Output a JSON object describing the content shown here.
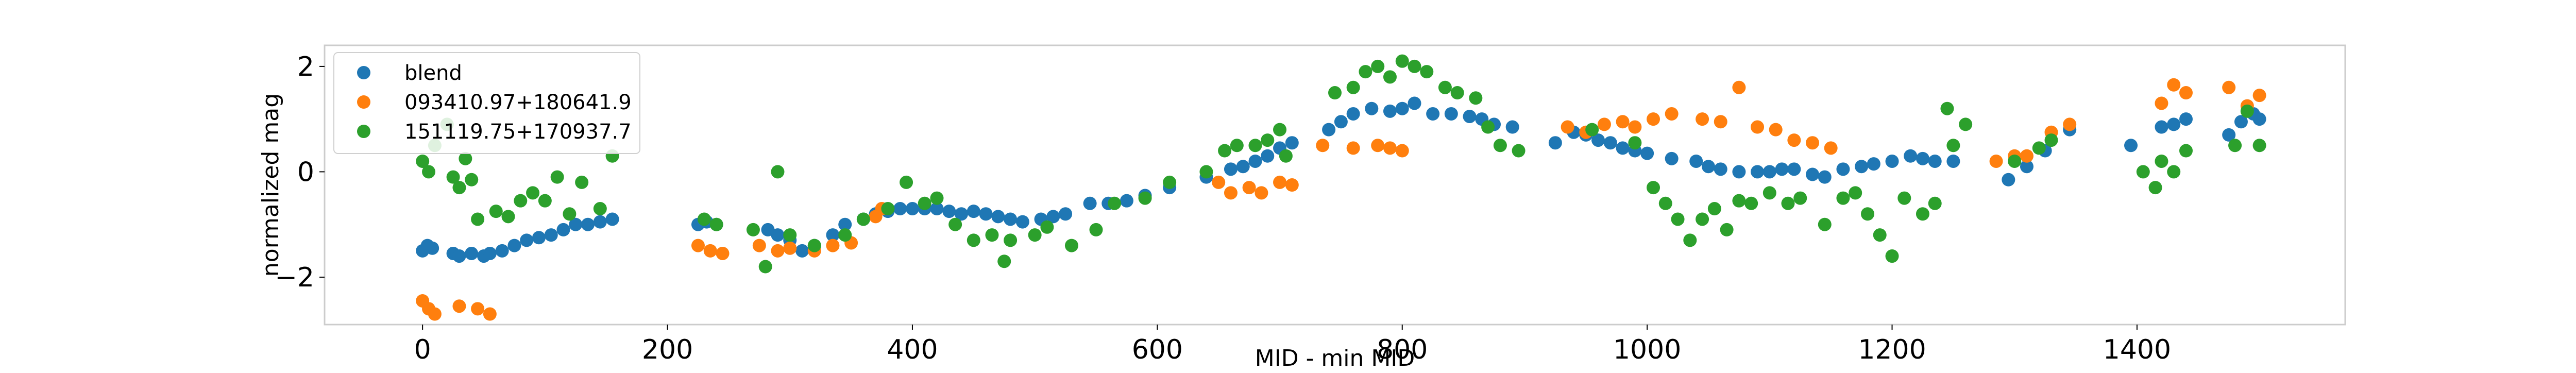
{
  "chart_data": {
    "type": "scatter",
    "xlabel": "MID - min MID",
    "ylabel": "normalized mag",
    "xlim": [
      -80,
      1570
    ],
    "ylim": [
      -2.9,
      2.4
    ],
    "xticks": [
      0,
      200,
      400,
      600,
      800,
      1000,
      1200,
      1400
    ],
    "yticks": [
      -2,
      0,
      2
    ],
    "grid": false,
    "legend_position": "top-left",
    "series": [
      {
        "name": "blend",
        "color": "#1f77b4",
        "points": [
          [
            0,
            -1.5
          ],
          [
            4,
            -1.4
          ],
          [
            8,
            -1.45
          ],
          [
            25,
            -1.55
          ],
          [
            30,
            -1.6
          ],
          [
            40,
            -1.55
          ],
          [
            50,
            -1.6
          ],
          [
            55,
            -1.55
          ],
          [
            65,
            -1.5
          ],
          [
            75,
            -1.4
          ],
          [
            85,
            -1.3
          ],
          [
            95,
            -1.25
          ],
          [
            105,
            -1.2
          ],
          [
            115,
            -1.1
          ],
          [
            125,
            -1.0
          ],
          [
            135,
            -1.0
          ],
          [
            145,
            -0.95
          ],
          [
            155,
            -0.9
          ],
          [
            225,
            -1.0
          ],
          [
            232,
            -0.95
          ],
          [
            240,
            -1.0
          ],
          [
            282,
            -1.1
          ],
          [
            290,
            -1.2
          ],
          [
            300,
            -1.3
          ],
          [
            310,
            -1.5
          ],
          [
            320,
            -1.4
          ],
          [
            335,
            -1.2
          ],
          [
            345,
            -1.0
          ],
          [
            360,
            -0.9
          ],
          [
            370,
            -0.8
          ],
          [
            380,
            -0.75
          ],
          [
            390,
            -0.7
          ],
          [
            400,
            -0.7
          ],
          [
            410,
            -0.7
          ],
          [
            420,
            -0.7
          ],
          [
            430,
            -0.75
          ],
          [
            440,
            -0.8
          ],
          [
            450,
            -0.75
          ],
          [
            460,
            -0.8
          ],
          [
            470,
            -0.85
          ],
          [
            480,
            -0.9
          ],
          [
            490,
            -0.95
          ],
          [
            505,
            -0.9
          ],
          [
            515,
            -0.85
          ],
          [
            525,
            -0.8
          ],
          [
            545,
            -0.6
          ],
          [
            560,
            -0.6
          ],
          [
            575,
            -0.55
          ],
          [
            590,
            -0.45
          ],
          [
            610,
            -0.3
          ],
          [
            640,
            -0.1
          ],
          [
            660,
            0.05
          ],
          [
            670,
            0.1
          ],
          [
            680,
            0.2
          ],
          [
            690,
            0.3
          ],
          [
            700,
            0.45
          ],
          [
            710,
            0.55
          ],
          [
            740,
            0.8
          ],
          [
            750,
            0.95
          ],
          [
            760,
            1.1
          ],
          [
            775,
            1.2
          ],
          [
            790,
            1.15
          ],
          [
            800,
            1.2
          ],
          [
            810,
            1.3
          ],
          [
            825,
            1.1
          ],
          [
            840,
            1.1
          ],
          [
            855,
            1.05
          ],
          [
            865,
            1.0
          ],
          [
            875,
            0.9
          ],
          [
            890,
            0.85
          ],
          [
            925,
            0.55
          ],
          [
            940,
            0.75
          ],
          [
            950,
            0.7
          ],
          [
            960,
            0.6
          ],
          [
            970,
            0.55
          ],
          [
            980,
            0.45
          ],
          [
            990,
            0.4
          ],
          [
            1000,
            0.35
          ],
          [
            1020,
            0.25
          ],
          [
            1040,
            0.2
          ],
          [
            1050,
            0.1
          ],
          [
            1060,
            0.05
          ],
          [
            1075,
            0.0
          ],
          [
            1090,
            0.0
          ],
          [
            1100,
            0.0
          ],
          [
            1110,
            0.05
          ],
          [
            1120,
            0.05
          ],
          [
            1135,
            -0.05
          ],
          [
            1145,
            -0.1
          ],
          [
            1160,
            0.05
          ],
          [
            1175,
            0.1
          ],
          [
            1185,
            0.15
          ],
          [
            1200,
            0.2
          ],
          [
            1215,
            0.3
          ],
          [
            1225,
            0.25
          ],
          [
            1235,
            0.2
          ],
          [
            1250,
            0.2
          ],
          [
            1295,
            -0.15
          ],
          [
            1310,
            0.1
          ],
          [
            1325,
            0.4
          ],
          [
            1345,
            0.8
          ],
          [
            1395,
            0.5
          ],
          [
            1420,
            0.85
          ],
          [
            1430,
            0.9
          ],
          [
            1440,
            1.0
          ],
          [
            1475,
            0.7
          ],
          [
            1485,
            0.95
          ],
          [
            1495,
            1.1
          ],
          [
            1500,
            1.0
          ]
        ]
      },
      {
        "name": "093410.97+180641.9",
        "color": "#ff7f0e",
        "points": [
          [
            0,
            -2.45
          ],
          [
            5,
            -2.6
          ],
          [
            10,
            -2.7
          ],
          [
            30,
            -2.55
          ],
          [
            45,
            -2.6
          ],
          [
            55,
            -2.7
          ],
          [
            225,
            -1.4
          ],
          [
            235,
            -1.5
          ],
          [
            245,
            -1.55
          ],
          [
            275,
            -1.4
          ],
          [
            290,
            -1.5
          ],
          [
            300,
            -1.45
          ],
          [
            320,
            -1.5
          ],
          [
            335,
            -1.4
          ],
          [
            350,
            -1.35
          ],
          [
            370,
            -0.85
          ],
          [
            375,
            -0.7
          ],
          [
            650,
            -0.2
          ],
          [
            660,
            -0.4
          ],
          [
            675,
            -0.3
          ],
          [
            685,
            -0.4
          ],
          [
            700,
            -0.2
          ],
          [
            710,
            -0.25
          ],
          [
            735,
            0.5
          ],
          [
            760,
            0.45
          ],
          [
            780,
            0.5
          ],
          [
            790,
            0.45
          ],
          [
            800,
            0.4
          ],
          [
            935,
            0.85
          ],
          [
            950,
            0.75
          ],
          [
            965,
            0.9
          ],
          [
            980,
            0.95
          ],
          [
            990,
            0.85
          ],
          [
            1005,
            1.0
          ],
          [
            1020,
            1.1
          ],
          [
            1045,
            1.0
          ],
          [
            1060,
            0.95
          ],
          [
            1075,
            1.6
          ],
          [
            1090,
            0.85
          ],
          [
            1105,
            0.8
          ],
          [
            1120,
            0.6
          ],
          [
            1135,
            0.55
          ],
          [
            1150,
            0.45
          ],
          [
            1285,
            0.2
          ],
          [
            1300,
            0.3
          ],
          [
            1310,
            0.3
          ],
          [
            1330,
            0.75
          ],
          [
            1345,
            0.9
          ],
          [
            1420,
            1.3
          ],
          [
            1430,
            1.65
          ],
          [
            1440,
            1.5
          ],
          [
            1475,
            1.6
          ],
          [
            1490,
            1.25
          ],
          [
            1500,
            1.45
          ]
        ]
      },
      {
        "name": "151119.75+170937.7",
        "color": "#2ca02c",
        "points": [
          [
            0,
            0.2
          ],
          [
            5,
            0.0
          ],
          [
            10,
            0.5
          ],
          [
            20,
            0.9
          ],
          [
            25,
            -0.1
          ],
          [
            30,
            -0.3
          ],
          [
            35,
            0.25
          ],
          [
            40,
            -0.15
          ],
          [
            45,
            -0.9
          ],
          [
            60,
            -0.75
          ],
          [
            70,
            -0.85
          ],
          [
            80,
            -0.55
          ],
          [
            90,
            -0.4
          ],
          [
            100,
            -0.55
          ],
          [
            110,
            -0.1
          ],
          [
            120,
            -0.8
          ],
          [
            130,
            -0.2
          ],
          [
            145,
            -0.7
          ],
          [
            155,
            0.3
          ],
          [
            230,
            -0.9
          ],
          [
            240,
            -1.0
          ],
          [
            270,
            -1.1
          ],
          [
            280,
            -1.8
          ],
          [
            290,
            0.0
          ],
          [
            300,
            -1.2
          ],
          [
            320,
            -1.4
          ],
          [
            345,
            -1.2
          ],
          [
            360,
            -0.9
          ],
          [
            380,
            -0.7
          ],
          [
            395,
            -0.2
          ],
          [
            410,
            -0.6
          ],
          [
            420,
            -0.5
          ],
          [
            435,
            -1.0
          ],
          [
            450,
            -1.3
          ],
          [
            465,
            -1.2
          ],
          [
            475,
            -1.7
          ],
          [
            480,
            -1.3
          ],
          [
            500,
            -1.2
          ],
          [
            510,
            -1.05
          ],
          [
            530,
            -1.4
          ],
          [
            550,
            -1.1
          ],
          [
            565,
            -0.6
          ],
          [
            590,
            -0.5
          ],
          [
            610,
            -0.2
          ],
          [
            640,
            0.0
          ],
          [
            655,
            0.4
          ],
          [
            665,
            0.5
          ],
          [
            680,
            0.5
          ],
          [
            690,
            0.6
          ],
          [
            700,
            0.8
          ],
          [
            705,
            0.3
          ],
          [
            745,
            1.5
          ],
          [
            760,
            1.6
          ],
          [
            770,
            1.9
          ],
          [
            780,
            2.0
          ],
          [
            790,
            1.8
          ],
          [
            800,
            2.1
          ],
          [
            810,
            2.0
          ],
          [
            820,
            1.9
          ],
          [
            835,
            1.6
          ],
          [
            845,
            1.5
          ],
          [
            860,
            1.4
          ],
          [
            870,
            0.85
          ],
          [
            880,
            0.5
          ],
          [
            895,
            0.4
          ],
          [
            955,
            0.8
          ],
          [
            990,
            0.55
          ],
          [
            1005,
            -0.3
          ],
          [
            1015,
            -0.6
          ],
          [
            1025,
            -0.9
          ],
          [
            1035,
            -1.3
          ],
          [
            1045,
            -0.9
          ],
          [
            1055,
            -0.7
          ],
          [
            1065,
            -1.1
          ],
          [
            1075,
            -0.55
          ],
          [
            1085,
            -0.6
          ],
          [
            1100,
            -0.4
          ],
          [
            1115,
            -0.6
          ],
          [
            1125,
            -0.5
          ],
          [
            1145,
            -1.0
          ],
          [
            1160,
            -0.5
          ],
          [
            1170,
            -0.4
          ],
          [
            1180,
            -0.8
          ],
          [
            1190,
            -1.2
          ],
          [
            1200,
            -1.6
          ],
          [
            1210,
            -0.5
          ],
          [
            1225,
            -0.8
          ],
          [
            1235,
            -0.6
          ],
          [
            1245,
            1.2
          ],
          [
            1250,
            0.5
          ],
          [
            1260,
            0.9
          ],
          [
            1300,
            0.2
          ],
          [
            1320,
            0.45
          ],
          [
            1330,
            0.6
          ],
          [
            1405,
            0.0
          ],
          [
            1415,
            -0.3
          ],
          [
            1420,
            0.2
          ],
          [
            1430,
            0.0
          ],
          [
            1440,
            0.4
          ],
          [
            1480,
            0.5
          ],
          [
            1490,
            1.15
          ],
          [
            1500,
            0.5
          ]
        ]
      }
    ]
  }
}
